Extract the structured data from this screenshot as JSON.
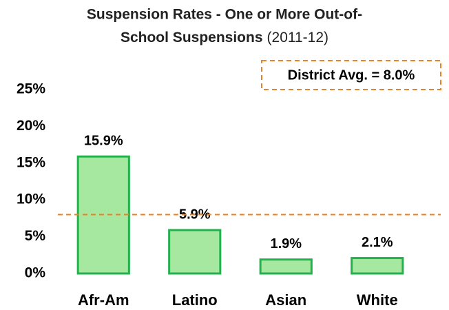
{
  "chart_data": {
    "type": "bar",
    "title_lines": [
      "Suspension Rates - One or More Out-of-",
      "School Suspensions"
    ],
    "title_note": "(2011-12)",
    "categories": [
      "Afr-Am",
      "Latino",
      "Asian",
      "White"
    ],
    "values": [
      15.9,
      5.9,
      1.9,
      2.1
    ],
    "value_labels": [
      "15.9%",
      "5.9%",
      "1.9%",
      "2.1%"
    ],
    "color": "#a6e8a0",
    "edge_color": "#22b24c",
    "ylim": [
      0,
      25
    ],
    "yticks": [
      {
        "value": 0,
        "label": "0%"
      },
      {
        "value": 5,
        "label": "5%"
      },
      {
        "value": 10,
        "label": "10%"
      },
      {
        "value": 15,
        "label": "15%"
      },
      {
        "value": 20,
        "label": "20%"
      },
      {
        "value": 25,
        "label": "25%"
      }
    ],
    "grid": false,
    "reference": {
      "value": 8.0,
      "label": "District Avg. = 8.0%",
      "color": "#e8822a"
    }
  }
}
